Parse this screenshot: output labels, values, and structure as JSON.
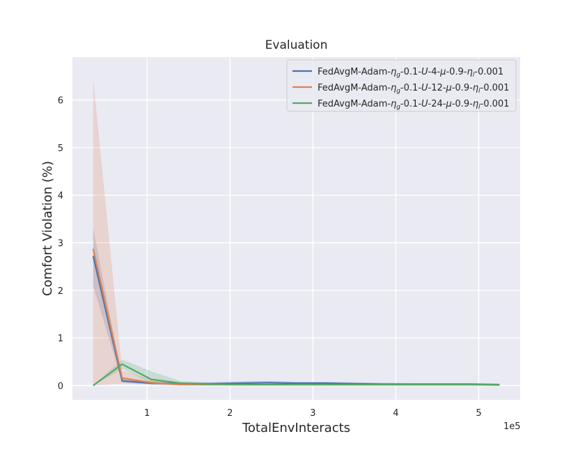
{
  "chart_data": {
    "type": "line",
    "title": "Evaluation",
    "xlabel": "TotalEnvInteracts",
    "ylabel": "Comfort Violation (%)",
    "x_offset_text": "1e5",
    "xlim": [
      0.1,
      5.5
    ],
    "ylim": [
      -0.3,
      6.9
    ],
    "x_ticks": [
      1,
      2,
      3,
      4,
      5
    ],
    "x_tick_labels": [
      "1",
      "2",
      "3",
      "4",
      "5"
    ],
    "y_ticks": [
      0,
      1,
      2,
      3,
      4,
      5,
      6
    ],
    "y_tick_labels": [
      "0",
      "1",
      "2",
      "3",
      "4",
      "5",
      "6"
    ],
    "grid": true,
    "legend_position": "top-right",
    "x": [
      0.35,
      0.7,
      1.05,
      1.4,
      1.75,
      2.1,
      2.45,
      2.8,
      3.15,
      3.5,
      3.85,
      4.2,
      4.55,
      4.9,
      5.25
    ],
    "series": [
      {
        "name": "FedAvgM-Adam-ηg-0.1-U-4-μ-0.9-ηl-0.001",
        "color": "#4c72b0",
        "values": [
          2.72,
          0.1,
          0.05,
          0.04,
          0.04,
          0.05,
          0.06,
          0.05,
          0.05,
          0.04,
          0.03,
          0.03,
          0.03,
          0.03,
          0.02
        ],
        "lower": [
          2.1,
          0.06,
          0.02,
          0.01,
          0.01,
          0.01,
          0.02,
          0.02,
          0.02,
          0.01,
          0.01,
          0.01,
          0.01,
          0.01,
          0.0
        ],
        "upper": [
          3.3,
          0.16,
          0.09,
          0.07,
          0.07,
          0.09,
          0.1,
          0.08,
          0.08,
          0.07,
          0.06,
          0.05,
          0.05,
          0.05,
          0.04
        ]
      },
      {
        "name": "FedAvgM-Adam-ηg-0.1-U-12-μ-0.9-ηl-0.001",
        "color": "#dd8452",
        "values": [
          2.87,
          0.16,
          0.06,
          0.02,
          0.02,
          0.02,
          0.02,
          0.02,
          0.02,
          0.02,
          0.02,
          0.02,
          0.02,
          0.02,
          0.01
        ],
        "lower": [
          0.0,
          0.04,
          0.02,
          0.0,
          0.0,
          0.0,
          0.0,
          0.0,
          0.0,
          0.0,
          0.0,
          0.0,
          0.0,
          0.0,
          0.0
        ],
        "upper": [
          6.45,
          0.32,
          0.12,
          0.05,
          0.04,
          0.04,
          0.04,
          0.04,
          0.04,
          0.04,
          0.04,
          0.04,
          0.04,
          0.04,
          0.03
        ]
      },
      {
        "name": "FedAvgM-Adam-ηg-0.1-U-24-μ-0.9-ηl-0.001",
        "color": "#55a868",
        "values": [
          0.0,
          0.45,
          0.13,
          0.05,
          0.03,
          0.02,
          0.02,
          0.02,
          0.02,
          0.02,
          0.02,
          0.02,
          0.02,
          0.02,
          0.02
        ],
        "lower": [
          0.0,
          0.35,
          0.05,
          0.02,
          0.01,
          0.0,
          0.0,
          0.0,
          0.0,
          0.0,
          0.0,
          0.0,
          0.0,
          0.0,
          0.0
        ],
        "upper": [
          0.0,
          0.55,
          0.3,
          0.1,
          0.06,
          0.04,
          0.04,
          0.04,
          0.04,
          0.04,
          0.04,
          0.04,
          0.04,
          0.04,
          0.04
        ]
      }
    ],
    "legend": {
      "entries": [
        {
          "prefix": "FedAvgM-Adam-",
          "g": "g",
          "U": "U",
          "mid": "-0.1-",
          "num": "4",
          "mu": "μ",
          "tail": "-0.9-",
          "l": "l",
          "end": "-0.001"
        },
        {
          "prefix": "FedAvgM-Adam-",
          "g": "g",
          "U": "U",
          "mid": "-0.1-",
          "num": "12",
          "mu": "μ",
          "tail": "-0.9-",
          "l": "l",
          "end": "-0.001"
        },
        {
          "prefix": "FedAvgM-Adam-",
          "g": "g",
          "U": "U",
          "mid": "-0.1-",
          "num": "24",
          "mu": "μ",
          "tail": "-0.9-",
          "l": "l",
          "end": "-0.001"
        }
      ]
    },
    "colors": {
      "plot_bg": "#eaeaf2",
      "grid": "#ffffff",
      "legend_bg": "#eaeaf2",
      "legend_border": "#cccccc"
    }
  }
}
